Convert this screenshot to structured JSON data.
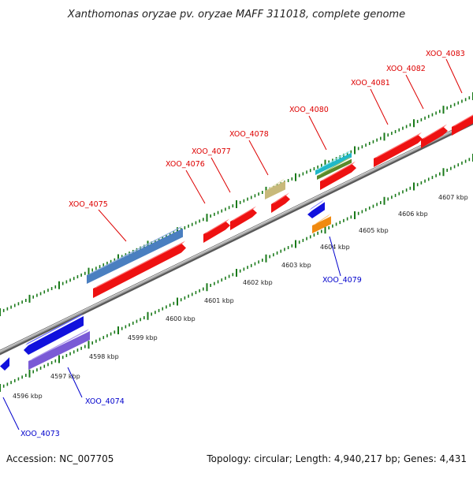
{
  "title": "Xanthomonas oryzae pv. oryzae MAFF 311018, complete genome",
  "footer": {
    "accession": "Accession: NC_007705",
    "summary": "Topology: circular; Length: 4,940,217 bp; Genes: 4,431"
  },
  "colors": {
    "forward_label": "#dd0000",
    "reverse_label": "#0000cc",
    "backbone": "#8c8c8c",
    "tick": "#1a7a1a",
    "cds_forward": "#ee1111",
    "cds_reverse": "#1111dd"
  },
  "scale": {
    "unit": "kbp",
    "labels": [
      "4596 kbp",
      "4597 kbp",
      "4598 kbp",
      "4599 kbp",
      "4600 kbp",
      "4601 kbp",
      "4602 kbp",
      "4603 kbp",
      "4604 kbp",
      "4605 kbp",
      "4606 kbp",
      "4607 kbp"
    ]
  },
  "genes": [
    {
      "label": "XOO_4073",
      "strand": "reverse"
    },
    {
      "label": "XOO_4074",
      "strand": "reverse"
    },
    {
      "label": "XOO_4075",
      "strand": "forward"
    },
    {
      "label": "XOO_4076",
      "strand": "forward"
    },
    {
      "label": "XOO_4077",
      "strand": "forward"
    },
    {
      "label": "XOO_4078",
      "strand": "forward"
    },
    {
      "label": "XOO_4079",
      "strand": "reverse"
    },
    {
      "label": "XOO_4080",
      "strand": "forward"
    },
    {
      "label": "XOO_4081",
      "strand": "forward"
    },
    {
      "label": "XOO_4082",
      "strand": "forward"
    },
    {
      "label": "XOO_4083",
      "strand": "forward"
    }
  ]
}
